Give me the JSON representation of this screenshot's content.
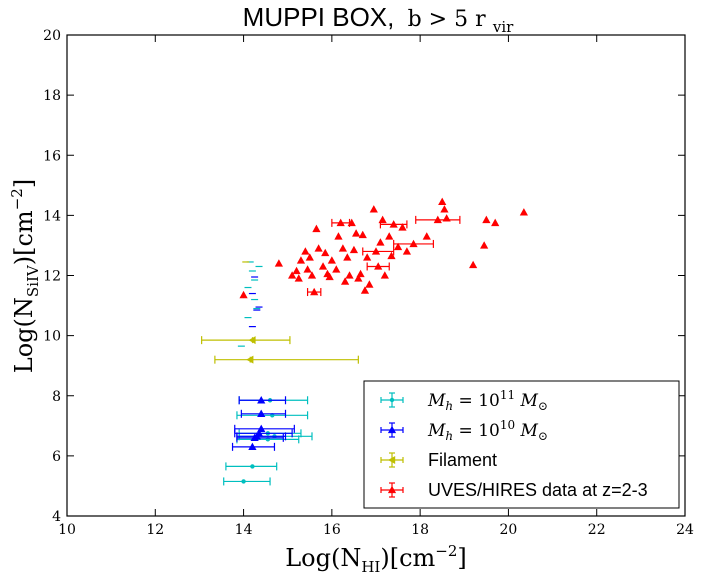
{
  "chart_data": {
    "type": "scatter",
    "title": {
      "main": "MUPPI BOX,",
      "condition": "b > 5 r",
      "subscript": "vir"
    },
    "xlabel": {
      "prefix": "Log(N",
      "subscript": "HI",
      "suffix": ")[cm",
      "power": "−2",
      "close": "]"
    },
    "ylabel": {
      "prefix": "Log(N",
      "subscript": "SiIV",
      "suffix": ")[cm",
      "power": "−2",
      "close": "]"
    },
    "xlim": [
      10,
      24
    ],
    "ylim": [
      4,
      20
    ],
    "xticks": [
      "10",
      "12",
      "14",
      "16",
      "18",
      "20",
      "22",
      "24"
    ],
    "yticks": [
      "4",
      "6",
      "8",
      "10",
      "12",
      "14",
      "16",
      "18",
      "20"
    ],
    "legend": {
      "position": "lower-right",
      "entries": [
        {
          "label_prefix": "M",
          "label_sub": "h",
          "label_mid": " = 10",
          "label_sup": "11",
          "label_suffix": " M",
          "label_sun": "⊙"
        },
        {
          "label_prefix": "M",
          "label_sub": "h",
          "label_mid": " = 10",
          "label_sup": "10",
          "label_suffix": " M",
          "label_sun": "⊙"
        },
        {
          "label": "Filament"
        },
        {
          "label": "UVES/HIRES data at z=2-3"
        }
      ]
    },
    "series": [
      {
        "name": "Mh = 10^11 Msun",
        "color": "#00bfbf",
        "marker": "dot",
        "points": [
          {
            "x": 14.2,
            "y": 5.65,
            "xlo": 13.6,
            "xhi": 14.75
          },
          {
            "x": 14.0,
            "y": 5.15,
            "xlo": 13.55,
            "xhi": 14.6
          },
          {
            "x": 14.55,
            "y": 6.55,
            "xlo": 13.85,
            "xhi": 15.25
          },
          {
            "x": 14.7,
            "y": 6.65,
            "xlo": 13.9,
            "xhi": 15.55
          },
          {
            "x": 14.65,
            "y": 7.35,
            "xlo": 13.85,
            "xhi": 15.45
          },
          {
            "x": 14.6,
            "y": 7.85,
            "xlo": 13.9,
            "xhi": 15.45
          },
          {
            "x": 14.55,
            "y": 6.75,
            "xlo": 13.9,
            "xhi": 15.3
          }
        ],
        "upper_limits": [
          {
            "x": 14.15,
            "y": 12.45
          },
          {
            "x": 14.35,
            "y": 12.3
          },
          {
            "x": 14.2,
            "y": 12.15
          },
          {
            "x": 14.25,
            "y": 11.85
          },
          {
            "x": 14.1,
            "y": 11.6
          },
          {
            "x": 14.25,
            "y": 11.2
          },
          {
            "x": 14.1,
            "y": 10.6
          },
          {
            "x": 14.3,
            "y": 10.9
          },
          {
            "x": 13.95,
            "y": 9.65
          }
        ]
      },
      {
        "name": "Mh = 10^10 Msun",
        "color": "#0000ff",
        "marker": "triangle",
        "points": [
          {
            "x": 14.4,
            "y": 7.85,
            "xlo": 13.9,
            "xhi": 14.95
          },
          {
            "x": 14.4,
            "y": 7.4,
            "xlo": 13.95,
            "xhi": 14.95
          },
          {
            "x": 14.4,
            "y": 6.9,
            "xlo": 13.8,
            "xhi": 15.15
          },
          {
            "x": 14.35,
            "y": 6.75,
            "xlo": 13.8,
            "xhi": 15.1
          },
          {
            "x": 14.3,
            "y": 6.65,
            "xlo": 13.85,
            "xhi": 14.95
          },
          {
            "x": 14.25,
            "y": 6.6,
            "xlo": 13.85,
            "xhi": 14.9
          },
          {
            "x": 14.2,
            "y": 6.3,
            "xlo": 13.75,
            "xhi": 14.7
          }
        ],
        "upper_limits": [
          {
            "x": 14.3,
            "y": 10.85
          },
          {
            "x": 14.2,
            "y": 10.3
          },
          {
            "x": 14.2,
            "y": 11.4
          },
          {
            "x": 14.35,
            "y": 10.95
          },
          {
            "x": 14.25,
            "y": 11.95
          }
        ]
      },
      {
        "name": "Filament",
        "color": "#bfbf00",
        "marker": "left-triangle",
        "points": [
          {
            "x": 14.2,
            "y": 9.85,
            "xlo": 13.05,
            "xhi": 15.05
          },
          {
            "x": 14.15,
            "y": 9.2,
            "xlo": 13.35,
            "xhi": 16.6
          }
        ],
        "upper_limits": [
          {
            "x": 14.05,
            "y": 12.45
          }
        ]
      },
      {
        "name": "UVES/HIRES data at z=2-3",
        "color": "#ff0000",
        "marker": "triangle",
        "points": [
          {
            "x": 14.0,
            "y": 11.35
          },
          {
            "x": 14.8,
            "y": 12.4
          },
          {
            "x": 15.1,
            "y": 12.0
          },
          {
            "x": 15.2,
            "y": 12.15
          },
          {
            "x": 15.25,
            "y": 11.9
          },
          {
            "x": 15.3,
            "y": 12.5
          },
          {
            "x": 15.4,
            "y": 12.8
          },
          {
            "x": 15.5,
            "y": 12.6
          },
          {
            "x": 15.45,
            "y": 12.2
          },
          {
            "x": 15.55,
            "y": 12.0
          },
          {
            "x": 15.6,
            "y": 11.45,
            "xlo": 15.45,
            "xhi": 15.75
          },
          {
            "x": 15.65,
            "y": 13.55
          },
          {
            "x": 15.7,
            "y": 12.9
          },
          {
            "x": 15.8,
            "y": 12.3
          },
          {
            "x": 15.85,
            "y": 12.75
          },
          {
            "x": 15.9,
            "y": 12.05
          },
          {
            "x": 15.95,
            "y": 11.95
          },
          {
            "x": 16.0,
            "y": 12.5
          },
          {
            "x": 16.1,
            "y": 12.2
          },
          {
            "x": 16.15,
            "y": 13.3
          },
          {
            "x": 16.2,
            "y": 13.75,
            "xlo": 16.0,
            "xhi": 16.4
          },
          {
            "x": 16.25,
            "y": 12.9
          },
          {
            "x": 16.3,
            "y": 11.8
          },
          {
            "x": 16.35,
            "y": 12.6
          },
          {
            "x": 16.4,
            "y": 12.0
          },
          {
            "x": 16.45,
            "y": 13.75
          },
          {
            "x": 16.5,
            "y": 12.85
          },
          {
            "x": 16.55,
            "y": 13.4
          },
          {
            "x": 16.6,
            "y": 11.9
          },
          {
            "x": 16.65,
            "y": 12.05
          },
          {
            "x": 16.7,
            "y": 13.35
          },
          {
            "x": 16.75,
            "y": 11.5
          },
          {
            "x": 16.8,
            "y": 12.6
          },
          {
            "x": 16.85,
            "y": 11.7
          },
          {
            "x": 16.95,
            "y": 14.2
          },
          {
            "x": 17.0,
            "y": 12.8,
            "xlo": 16.7,
            "xhi": 17.4
          },
          {
            "x": 17.05,
            "y": 12.3,
            "xlo": 16.8,
            "xhi": 17.3
          },
          {
            "x": 17.1,
            "y": 13.1
          },
          {
            "x": 17.15,
            "y": 13.85
          },
          {
            "x": 17.2,
            "y": 12.0
          },
          {
            "x": 17.3,
            "y": 13.3
          },
          {
            "x": 17.35,
            "y": 12.65
          },
          {
            "x": 17.4,
            "y": 13.7,
            "xlo": 17.1,
            "xhi": 17.7
          },
          {
            "x": 17.5,
            "y": 12.95
          },
          {
            "x": 17.6,
            "y": 13.6
          },
          {
            "x": 17.7,
            "y": 12.8
          },
          {
            "x": 17.85,
            "y": 13.05,
            "xlo": 17.4,
            "xhi": 18.3
          },
          {
            "x": 18.15,
            "y": 13.3
          },
          {
            "x": 18.4,
            "y": 13.85,
            "xlo": 17.9,
            "xhi": 18.9
          },
          {
            "x": 18.5,
            "y": 14.45
          },
          {
            "x": 18.55,
            "y": 14.2
          },
          {
            "x": 18.6,
            "y": 13.9
          },
          {
            "x": 19.2,
            "y": 12.35
          },
          {
            "x": 19.45,
            "y": 13.0
          },
          {
            "x": 19.5,
            "y": 13.85
          },
          {
            "x": 19.7,
            "y": 13.75
          },
          {
            "x": 20.35,
            "y": 14.1
          }
        ]
      }
    ]
  }
}
